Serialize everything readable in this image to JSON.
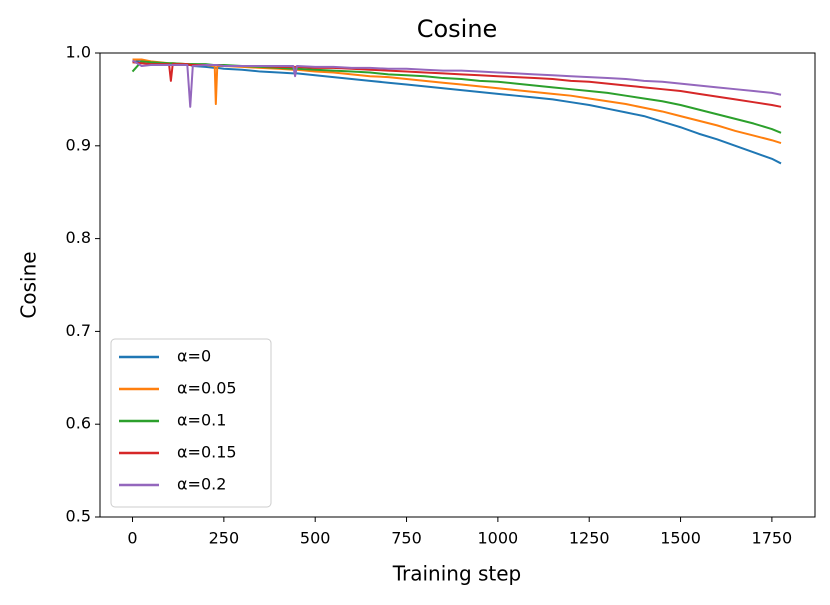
{
  "chart_data": {
    "type": "line",
    "title": "Cosine",
    "x_label": "Training step",
    "y_label": "Cosine",
    "x": [
      0,
      25,
      50,
      100,
      105,
      110,
      150,
      158,
      165,
      200,
      225,
      228,
      232,
      250,
      300,
      350,
      400,
      440,
      445,
      450,
      500,
      550,
      600,
      650,
      700,
      750,
      800,
      850,
      900,
      950,
      1000,
      1050,
      1100,
      1150,
      1200,
      1250,
      1300,
      1350,
      1400,
      1450,
      1500,
      1550,
      1600,
      1650,
      1700,
      1750,
      1775
    ],
    "series": [
      {
        "name": "α=0",
        "color": "#1f77b4",
        "values": [
          0.99,
          0.992,
          0.99,
          0.988,
          0.988,
          0.988,
          0.987,
          0.987,
          0.986,
          0.985,
          0.984,
          0.984,
          0.984,
          0.983,
          0.982,
          0.98,
          0.979,
          0.978,
          0.978,
          0.978,
          0.976,
          0.974,
          0.972,
          0.97,
          0.968,
          0.966,
          0.964,
          0.962,
          0.96,
          0.958,
          0.956,
          0.954,
          0.952,
          0.95,
          0.947,
          0.944,
          0.94,
          0.936,
          0.932,
          0.926,
          0.92,
          0.913,
          0.907,
          0.9,
          0.893,
          0.886,
          0.881
        ]
      },
      {
        "name": "α=0.05",
        "color": "#ff7f0e",
        "values": [
          0.993,
          0.993,
          0.991,
          0.989,
          0.989,
          0.989,
          0.988,
          0.988,
          0.988,
          0.987,
          0.986,
          0.945,
          0.986,
          0.986,
          0.985,
          0.984,
          0.983,
          0.982,
          0.982,
          0.982,
          0.98,
          0.979,
          0.977,
          0.975,
          0.974,
          0.972,
          0.97,
          0.968,
          0.966,
          0.964,
          0.962,
          0.96,
          0.958,
          0.956,
          0.954,
          0.951,
          0.948,
          0.945,
          0.941,
          0.937,
          0.932,
          0.927,
          0.922,
          0.916,
          0.911,
          0.906,
          0.903
        ]
      },
      {
        "name": "α=0.1",
        "color": "#2ca02c",
        "values": [
          0.98,
          0.991,
          0.99,
          0.989,
          0.989,
          0.989,
          0.988,
          0.988,
          0.988,
          0.988,
          0.987,
          0.987,
          0.987,
          0.987,
          0.986,
          0.985,
          0.984,
          0.983,
          0.983,
          0.983,
          0.982,
          0.981,
          0.98,
          0.979,
          0.977,
          0.976,
          0.975,
          0.973,
          0.972,
          0.97,
          0.969,
          0.967,
          0.965,
          0.963,
          0.961,
          0.959,
          0.957,
          0.954,
          0.951,
          0.948,
          0.944,
          0.939,
          0.934,
          0.929,
          0.924,
          0.918,
          0.914
        ]
      },
      {
        "name": "α=0.15",
        "color": "#d62728",
        "values": [
          0.99,
          0.989,
          0.988,
          0.988,
          0.97,
          0.988,
          0.988,
          0.987,
          0.987,
          0.987,
          0.987,
          0.987,
          0.987,
          0.986,
          0.986,
          0.986,
          0.985,
          0.985,
          0.985,
          0.985,
          0.984,
          0.984,
          0.983,
          0.982,
          0.981,
          0.98,
          0.979,
          0.978,
          0.977,
          0.976,
          0.975,
          0.974,
          0.973,
          0.972,
          0.97,
          0.969,
          0.967,
          0.965,
          0.963,
          0.961,
          0.959,
          0.956,
          0.953,
          0.95,
          0.947,
          0.944,
          0.942
        ]
      },
      {
        "name": "α=0.2",
        "color": "#9467bd",
        "values": [
          0.992,
          0.986,
          0.987,
          0.987,
          0.987,
          0.987,
          0.987,
          0.942,
          0.986,
          0.987,
          0.987,
          0.987,
          0.987,
          0.986,
          0.986,
          0.986,
          0.986,
          0.986,
          0.975,
          0.986,
          0.985,
          0.985,
          0.984,
          0.984,
          0.983,
          0.983,
          0.982,
          0.981,
          0.981,
          0.98,
          0.979,
          0.978,
          0.977,
          0.976,
          0.975,
          0.974,
          0.973,
          0.972,
          0.97,
          0.969,
          0.967,
          0.965,
          0.963,
          0.961,
          0.959,
          0.957,
          0.955
        ]
      }
    ],
    "xlim": [
      -89,
      1868
    ],
    "ylim": [
      0.5,
      1.0
    ],
    "xticks": [
      0,
      250,
      500,
      750,
      1000,
      1250,
      1500,
      1750
    ],
    "yticks": [
      0.5,
      0.6,
      0.7,
      0.8,
      0.9,
      {
        "value": 1.0,
        "label": "1.0"
      }
    ],
    "legend": "lower left",
    "grid": false
  }
}
